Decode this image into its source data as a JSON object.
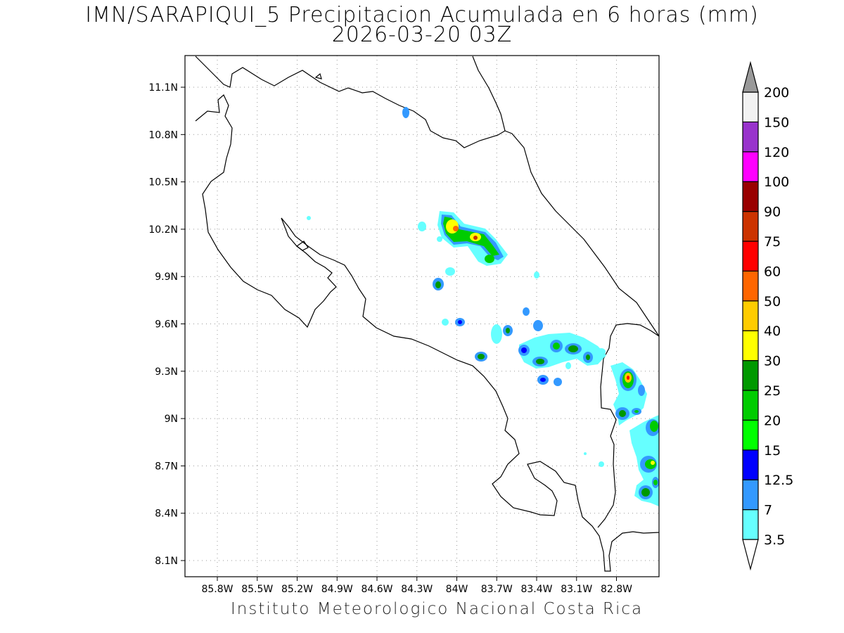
{
  "title": {
    "line1": "IMN/SARAPIQUI_5 Precipitacion Acumulada en 6 horas (mm)",
    "line2": "2026-03-20 03Z"
  },
  "credit": "Instituto Meteorologico Nacional Costa Rica",
  "map": {
    "lon_range": [
      -86.0,
      -82.55
    ],
    "lat_range": [
      8.0,
      11.3
    ],
    "lon_ticks": [
      "85.8W",
      "85.5W",
      "85.2W",
      "84.9W",
      "84.6W",
      "84.3W",
      "84W",
      "83.7W",
      "83.4W",
      "83.1W",
      "82.8W"
    ],
    "lat_ticks": [
      "11.1N",
      "10.8N",
      "10.5N",
      "10.2N",
      "9.9N",
      "9.6N",
      "9.3N",
      "9N",
      "8.7N",
      "8.4N",
      "8.1N"
    ],
    "grid": "dotted"
  },
  "colorbar": {
    "levels": [
      "3.5",
      "7",
      "12.5",
      "15",
      "20",
      "25",
      "30",
      "40",
      "50",
      "60",
      "75",
      "90",
      "100",
      "120",
      "150",
      "200"
    ],
    "colors": [
      "#66ffff",
      "#3399ff",
      "#0000ff",
      "#00ff00",
      "#00cc00",
      "#009900",
      "#ffff00",
      "#ffcc00",
      "#ff6600",
      "#ff0000",
      "#cc3300",
      "#990000",
      "#ff00ff",
      "#9933cc",
      "#f2f2f2",
      "#999999"
    ]
  }
}
